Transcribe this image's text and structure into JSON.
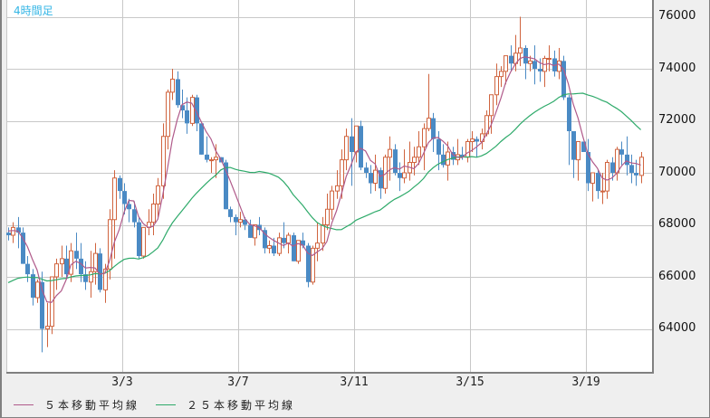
{
  "title": "4時間足",
  "colors": {
    "up": "#d0643f",
    "down": "#4a8ac4",
    "ma5": "#b05a8a",
    "ma25": "#2eaa6a",
    "grid": "#c8c8c8",
    "title": "#33b5e5"
  },
  "legend": [
    {
      "label": "５本移動平均線",
      "color": "#b05a8a"
    },
    {
      "label": "２５本移動平均線",
      "color": "#2eaa6a"
    }
  ],
  "y_axis": {
    "ticks": [
      "76000",
      "74000",
      "72000",
      "70000",
      "68000",
      "66000",
      "64000"
    ]
  },
  "x_axis": {
    "ticks": [
      "3/3",
      "3/7",
      "3/11",
      "3/15",
      "3/19"
    ]
  },
  "chart_data": {
    "type": "candlestick",
    "title": "4時間足",
    "xlabel": "",
    "ylabel": "",
    "ylim": [
      62400,
      76600
    ],
    "x_ticks": [
      "3/3",
      "3/7",
      "3/11",
      "3/15",
      "3/19"
    ],
    "y_ticks": [
      64000,
      66000,
      68000,
      70000,
      72000,
      74000,
      76000
    ],
    "legend": [
      "５本移動平均線",
      "２５本移動平均線"
    ],
    "grid": true,
    "candles_ohlc": [
      [
        67700,
        67900,
        67400,
        67600
      ],
      [
        67600,
        68100,
        67300,
        67900
      ],
      [
        67900,
        68300,
        67100,
        67700
      ],
      [
        67700,
        67900,
        66500,
        66500
      ],
      [
        66500,
        66800,
        65800,
        66100
      ],
      [
        66100,
        66300,
        64900,
        65200
      ],
      [
        65200,
        65900,
        65000,
        65800
      ],
      [
        65800,
        66200,
        63100,
        64000
      ],
      [
        64000,
        65000,
        63300,
        64100
      ],
      [
        64100,
        66000,
        63800,
        66000
      ],
      [
        66000,
        66700,
        65500,
        66500
      ],
      [
        66500,
        67200,
        66000,
        66700
      ],
      [
        66700,
        67200,
        65900,
        66100
      ],
      [
        66100,
        67300,
        65800,
        67000
      ],
      [
        67000,
        67700,
        66300,
        66700
      ],
      [
        66700,
        67300,
        65800,
        66100
      ],
      [
        66100,
        66600,
        65500,
        65800
      ],
      [
        65800,
        67000,
        65200,
        66200
      ],
      [
        66200,
        67300,
        65700,
        66900
      ],
      [
        66900,
        67100,
        65400,
        65500
      ],
      [
        65500,
        66500,
        65000,
        66300
      ],
      [
        66300,
        68600,
        65900,
        68200
      ],
      [
        68200,
        70100,
        66700,
        69800
      ],
      [
        69800,
        69900,
        69000,
        69300
      ],
      [
        69300,
        69600,
        68400,
        68800
      ],
      [
        68800,
        69000,
        68100,
        68600
      ],
      [
        68600,
        68900,
        67900,
        68100
      ],
      [
        68100,
        68300,
        66700,
        66800
      ],
      [
        66800,
        67900,
        66700,
        67900
      ],
      [
        67900,
        68600,
        67600,
        68100
      ],
      [
        68100,
        69200,
        67600,
        68800
      ],
      [
        68800,
        69800,
        68300,
        69500
      ],
      [
        69500,
        71900,
        69000,
        71400
      ],
      [
        71400,
        73200,
        70900,
        73100
      ],
      [
        73100,
        74000,
        72800,
        73600
      ],
      [
        73600,
        73900,
        72500,
        72600
      ],
      [
        72600,
        73200,
        72100,
        72400
      ],
      [
        72400,
        72900,
        71500,
        71900
      ],
      [
        71900,
        73000,
        71800,
        72900
      ],
      [
        72900,
        73000,
        71600,
        71900
      ],
      [
        71900,
        71900,
        70700,
        70700
      ],
      [
        70700,
        71400,
        70400,
        70500
      ],
      [
        70500,
        70600,
        70000,
        70500
      ],
      [
        70500,
        71100,
        69800,
        70600
      ],
      [
        70600,
        70600,
        70400,
        70400
      ],
      [
        70400,
        70500,
        68600,
        68600
      ],
      [
        68600,
        68700,
        68100,
        68300
      ],
      [
        68300,
        68400,
        67600,
        68100
      ],
      [
        68100,
        68500,
        67900,
        68200
      ],
      [
        68200,
        68300,
        67800,
        68000
      ],
      [
        68000,
        68200,
        67500,
        67500
      ],
      [
        67500,
        68000,
        67200,
        68000
      ],
      [
        68000,
        68300,
        67600,
        67800
      ],
      [
        67800,
        67900,
        66900,
        67100
      ],
      [
        67100,
        67400,
        66900,
        67200
      ],
      [
        67200,
        67500,
        66800,
        66900
      ],
      [
        66900,
        67700,
        66800,
        67500
      ],
      [
        67500,
        68100,
        67100,
        67300
      ],
      [
        67300,
        67700,
        66900,
        67600
      ],
      [
        67600,
        67700,
        66600,
        66600
      ],
      [
        66600,
        67300,
        66500,
        67400
      ],
      [
        67400,
        67700,
        67100,
        67200
      ],
      [
        67200,
        67300,
        65600,
        65800
      ],
      [
        65800,
        67200,
        65700,
        67100
      ],
      [
        67100,
        68100,
        66600,
        67300
      ],
      [
        67300,
        68300,
        67000,
        68000
      ],
      [
        68000,
        69200,
        67800,
        68600
      ],
      [
        68600,
        69500,
        68200,
        69300
      ],
      [
        69300,
        70100,
        69000,
        69500
      ],
      [
        69500,
        70900,
        69000,
        70500
      ],
      [
        70500,
        71700,
        70100,
        71400
      ],
      [
        71400,
        72100,
        69500,
        70800
      ],
      [
        70800,
        71700,
        70400,
        71800
      ],
      [
        71800,
        72000,
        70100,
        70200
      ],
      [
        70200,
        70400,
        69800,
        70000
      ],
      [
        70000,
        70300,
        69200,
        69600
      ],
      [
        69600,
        70700,
        69300,
        70100
      ],
      [
        70100,
        70200,
        69000,
        69400
      ],
      [
        69400,
        70700,
        69200,
        70600
      ],
      [
        70600,
        71400,
        69700,
        70900
      ],
      [
        70900,
        71100,
        69900,
        70000
      ],
      [
        70000,
        70400,
        69300,
        69800
      ],
      [
        69800,
        70900,
        69600,
        70000
      ],
      [
        70000,
        71200,
        69700,
        70400
      ],
      [
        70400,
        71000,
        69900,
        70600
      ],
      [
        70600,
        71600,
        70300,
        71000
      ],
      [
        71000,
        71900,
        70100,
        71700
      ],
      [
        71700,
        73800,
        71600,
        72100
      ],
      [
        72100,
        72300,
        70800,
        71300
      ],
      [
        71300,
        71600,
        70100,
        70700
      ],
      [
        70700,
        71100,
        70200,
        70300
      ],
      [
        70300,
        71200,
        69700,
        70800
      ],
      [
        70800,
        71000,
        70300,
        70500
      ],
      [
        70500,
        71300,
        70300,
        70700
      ],
      [
        70700,
        71000,
        70500,
        70600
      ],
      [
        70600,
        71300,
        70400,
        71200
      ],
      [
        71200,
        71600,
        70800,
        71300
      ],
      [
        71300,
        71400,
        70600,
        71200
      ],
      [
        71200,
        71700,
        70900,
        71500
      ],
      [
        71500,
        72400,
        71400,
        72200
      ],
      [
        72200,
        73000,
        71500,
        73000
      ],
      [
        73000,
        74200,
        72600,
        73700
      ],
      [
        73700,
        74100,
        73300,
        73900
      ],
      [
        73900,
        74400,
        73400,
        74500
      ],
      [
        74500,
        74900,
        73900,
        74200
      ],
      [
        74200,
        75300,
        73900,
        74600
      ],
      [
        74600,
        76000,
        74100,
        74800
      ],
      [
        74800,
        74900,
        73600,
        74200
      ],
      [
        74200,
        74500,
        73900,
        74300
      ],
      [
        74300,
        74900,
        73400,
        74000
      ],
      [
        74000,
        74400,
        73500,
        73900
      ],
      [
        73900,
        74500,
        73300,
        74400
      ],
      [
        74400,
        74900,
        73900,
        74400
      ],
      [
        74400,
        74700,
        73700,
        73900
      ],
      [
        73900,
        74800,
        73600,
        74300
      ],
      [
        74300,
        74500,
        72800,
        72900
      ],
      [
        72900,
        73000,
        70300,
        71600
      ],
      [
        71600,
        71600,
        69800,
        70500
      ],
      [
        70500,
        71000,
        69700,
        71200
      ],
      [
        71200,
        71200,
        70900,
        70800
      ],
      [
        70800,
        71300,
        69300,
        69600
      ],
      [
        69600,
        70000,
        68900,
        70000
      ],
      [
        70000,
        70100,
        69000,
        69300
      ],
      [
        69300,
        70000,
        68800,
        69300
      ],
      [
        69300,
        70500,
        69000,
        70400
      ],
      [
        70400,
        70600,
        69700,
        70000
      ],
      [
        70000,
        71000,
        69700,
        70900
      ],
      [
        70900,
        71200,
        70300,
        70700
      ],
      [
        70700,
        71400,
        69900,
        70300
      ],
      [
        70300,
        70700,
        69600,
        70000
      ],
      [
        70000,
        70500,
        69500,
        69900
      ],
      [
        69900,
        70800,
        69600,
        70600
      ]
    ]
  }
}
